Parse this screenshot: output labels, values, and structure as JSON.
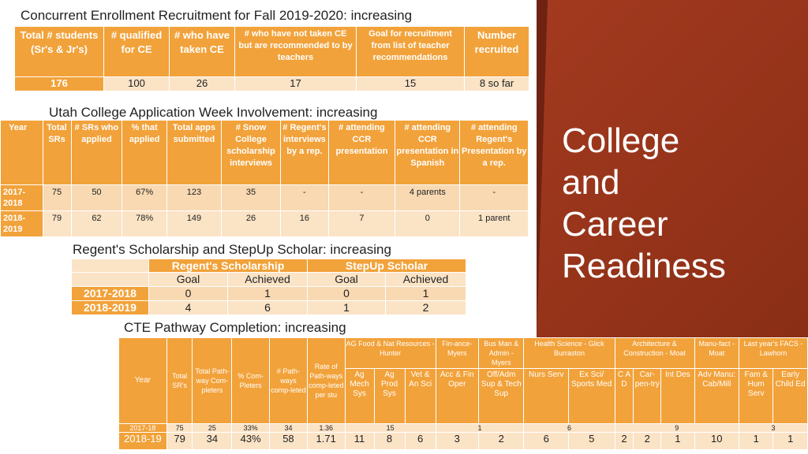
{
  "panel": {
    "title_lines": [
      "College",
      "and",
      "Career",
      "Readiness"
    ]
  },
  "sec1": {
    "title": "Concurrent Enrollment Recruitment for Fall 2019-2020:  increasing",
    "headers": [
      "Total # students (Sr's & Jr's)",
      "# qualified for CE",
      "# who have taken CE",
      "# who have not taken CE but are recommended to by teachers",
      "Goal for recruitment from list of teacher recommendations",
      "Number recruited"
    ],
    "values": [
      "176",
      "100",
      "26",
      "17",
      "15",
      "8 so far"
    ]
  },
  "sec2": {
    "title": "Utah College Application Week Involvement:  increasing",
    "headers": [
      "Year",
      "Total SRs",
      "# SRs who applied",
      "% that applied",
      "Total apps submitted",
      "# Snow College scholarship interviews",
      "# Regent's interviews by a rep.",
      "# attending CCR presentation",
      "# attending CCR presentation in Spanish",
      "# attending Regent's Presentation by a rep."
    ],
    "rows": [
      [
        "2017-2018",
        "75",
        "50",
        "67%",
        "123",
        "35",
        "-",
        "-",
        "4 parents",
        "-"
      ],
      [
        "2018-2019",
        "79",
        "62",
        "78%",
        "149",
        "26",
        "16",
        "7",
        "0",
        "1 parent"
      ]
    ]
  },
  "sec3": {
    "title": "Regent's Scholarship and StepUp Scholar:  increasing",
    "groups": [
      "Regent's Scholarship",
      "StepUp Scholar"
    ],
    "subheaders": [
      "Goal",
      "Achieved",
      "Goal",
      "Achieved"
    ],
    "rows": [
      [
        "2017-2018",
        "0",
        "1",
        "0",
        "1"
      ],
      [
        "2018-2019",
        "4",
        "6",
        "1",
        "2"
      ]
    ]
  },
  "sec4": {
    "title": "CTE Pathway Completion:  increasing",
    "left_headers": [
      "Year",
      "Total SR's",
      "Total Path-way Com-pleters",
      "% Com-Pleters",
      "# Path-ways comp-leted",
      "Rate of Path-ways comp-leted per stu"
    ],
    "groups": [
      "AG Food & Nat Resources - Hunter",
      "Fin-ance- Myers",
      "Bus Man & Admin - Myers",
      "Health Science - Glick    Burraston",
      "Architecture & Construction - Moat",
      "Manu-fact - Moat",
      "Last year's FACS - Lawhorn"
    ],
    "subheaders": [
      "Ag Mech Sys",
      "Ag Prod Sys",
      "Vet & An Sci",
      "Acc & Fin Oper",
      "Off/Adm Sup & Tech Sup",
      "Nurs Serv",
      "Ex Sci/ Sports Med",
      "C A D",
      "Car-pen-try",
      "Int Des",
      "Adv Manu: Cab/Mill",
      "Fam & Hum Serv",
      "Early Child Ed"
    ],
    "row1": {
      "left": [
        "2017-18",
        "75",
        "25",
        "33%",
        "34",
        "1.36"
      ],
      "ag": "15",
      "fin": "1",
      "health": "6",
      "arch": "9",
      "facs": "3"
    },
    "row2": [
      "2018-19",
      "79",
      "34",
      "43%",
      "58",
      "1.71",
      "11",
      "8",
      "6",
      "3",
      "2",
      "6",
      "5",
      "2",
      "2",
      "1",
      "10",
      "1",
      "1"
    ]
  }
}
